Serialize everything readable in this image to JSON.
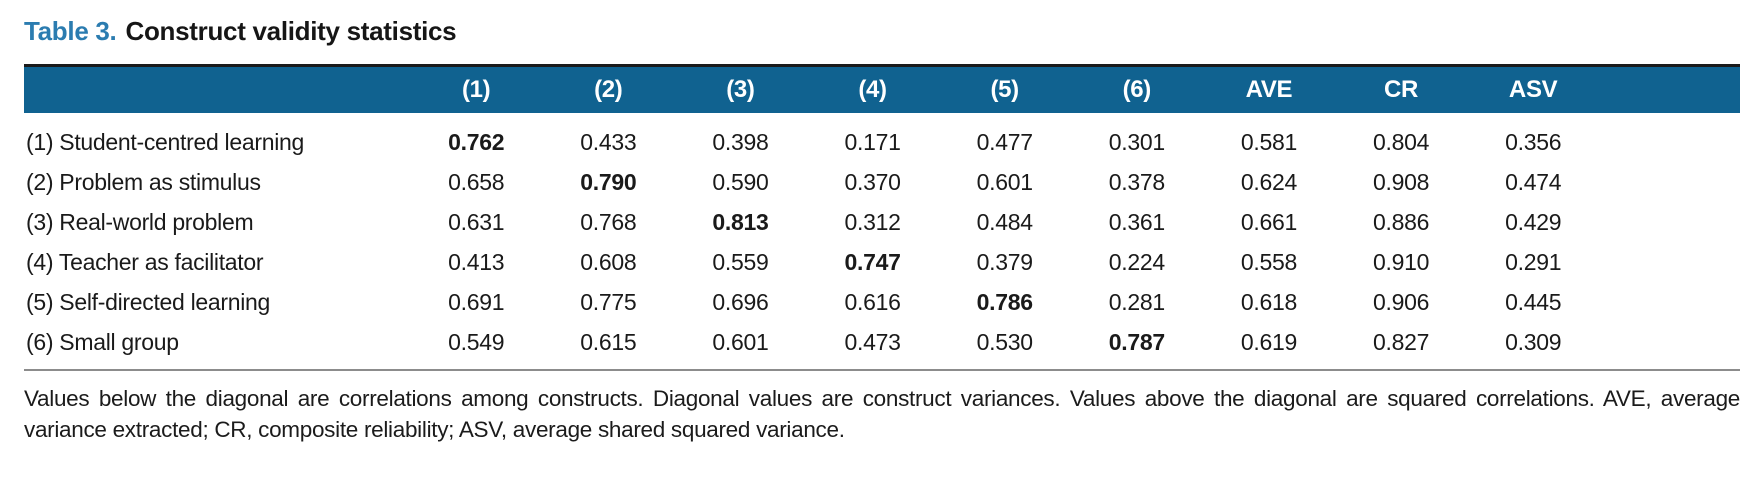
{
  "colors": {
    "header_bg": "#106290",
    "title_accent": "#2b7cb0",
    "top_rule": "#1a1a1a",
    "bottom_rule": "#8c8c8c"
  },
  "title": {
    "prefix": "Table 3.",
    "text": "Construct validity statistics"
  },
  "table": {
    "header": [
      "(1)",
      "(2)",
      "(3)",
      "(4)",
      "(5)",
      "(6)",
      "AVE",
      "CR",
      "ASV"
    ],
    "rows": [
      {
        "label": "(1) Student-centred learning",
        "values": [
          "0.762",
          "0.433",
          "0.398",
          "0.171",
          "0.477",
          "0.301",
          "0.581",
          "0.804",
          "0.356"
        ],
        "diag_index": 0
      },
      {
        "label": "(2) Problem as stimulus",
        "values": [
          "0.658",
          "0.790",
          "0.590",
          "0.370",
          "0.601",
          "0.378",
          "0.624",
          "0.908",
          "0.474"
        ],
        "diag_index": 1
      },
      {
        "label": "(3) Real-world problem",
        "values": [
          "0.631",
          "0.768",
          "0.813",
          "0.312",
          "0.484",
          "0.361",
          "0.661",
          "0.886",
          "0.429"
        ],
        "diag_index": 2
      },
      {
        "label": "(4) Teacher as facilitator",
        "values": [
          "0.413",
          "0.608",
          "0.559",
          "0.747",
          "0.379",
          "0.224",
          "0.558",
          "0.910",
          "0.291"
        ],
        "diag_index": 3
      },
      {
        "label": "(5) Self-directed learning",
        "values": [
          "0.691",
          "0.775",
          "0.696",
          "0.616",
          "0.786",
          "0.281",
          "0.618",
          "0.906",
          "0.445"
        ],
        "diag_index": 4
      },
      {
        "label": "(6) Small group",
        "values": [
          "0.549",
          "0.615",
          "0.601",
          "0.473",
          "0.530",
          "0.787",
          "0.619",
          "0.827",
          "0.309"
        ],
        "diag_index": 5
      }
    ]
  },
  "footnote": "Values below the diagonal are correlations among constructs. Diagonal values are construct variances. Values above the diagonal are squared correlations. AVE, average variance extracted; CR, composite reliability; ASV, average shared squared variance."
}
